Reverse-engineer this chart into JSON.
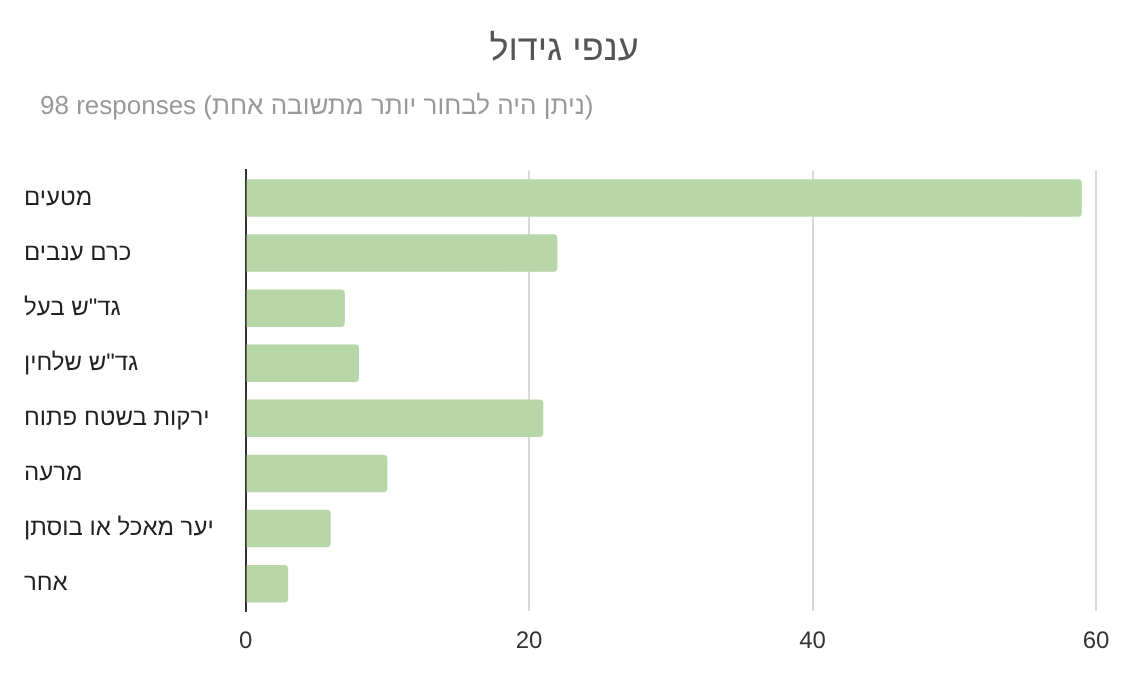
{
  "chart_data": {
    "type": "bar",
    "orientation": "horizontal",
    "title": "ענפי גידול",
    "subtitle": "98 responses (ניתן היה לבחור יותר מתשובה אחת)",
    "categories": [
      "מטעים",
      "כרם ענבים",
      "גד\"ש בעל",
      "גד\"ש שלחין",
      "ירקות בשטח פתוח",
      "מרעה",
      "יער מאכל או בוסתן",
      "אחר"
    ],
    "values": [
      59,
      22,
      7,
      8,
      21,
      10,
      6,
      3
    ],
    "color": "#b7d7a8",
    "xlim": [
      0,
      60
    ],
    "xticks": [
      0,
      20,
      40,
      60
    ],
    "grid": "x",
    "legend": false
  }
}
